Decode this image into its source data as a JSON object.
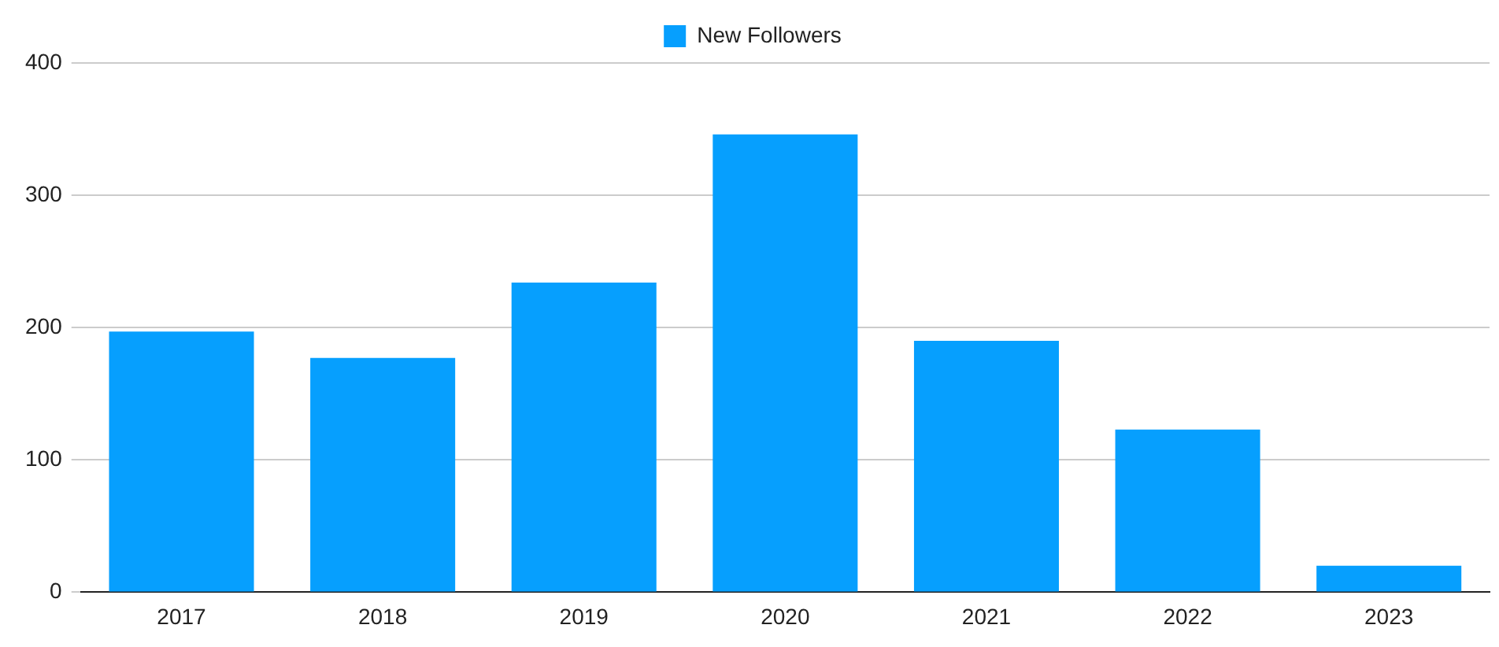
{
  "chart_data": {
    "type": "bar",
    "categories": [
      "2017",
      "2018",
      "2019",
      "2020",
      "2021",
      "2022",
      "2023"
    ],
    "series": [
      {
        "name": "New Followers",
        "color": "#069ffe",
        "values": [
          197,
          177,
          234,
          346,
          190,
          123,
          20
        ]
      }
    ],
    "ylim": [
      0,
      400
    ],
    "yticks": [
      0,
      100,
      200,
      300,
      400
    ],
    "grid": "y",
    "legend": "top"
  }
}
